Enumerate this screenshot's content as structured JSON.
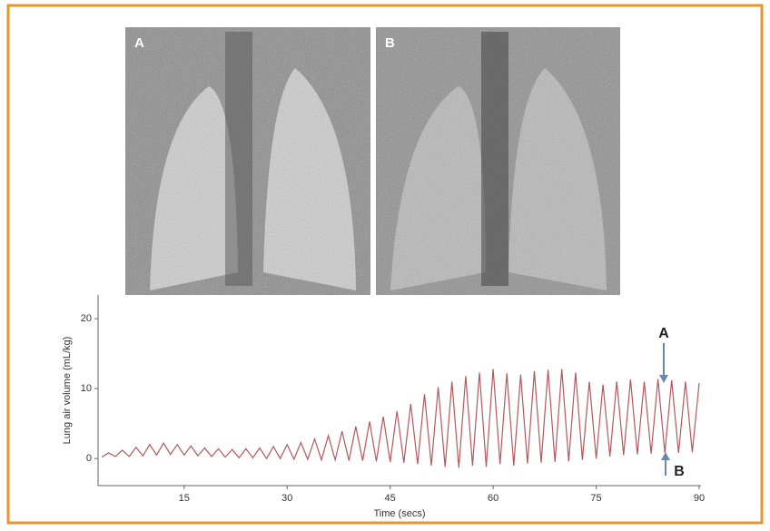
{
  "image_labels": [
    "A",
    "B"
  ],
  "chart_data": {
    "type": "line",
    "y_label": "Lung air volume (mL/kg)",
    "x_label": "Time (secs)",
    "annotations": [
      "A",
      "B"
    ],
    "xlim": [
      3,
      90
    ],
    "xticks": [
      15,
      30,
      45,
      60,
      75,
      90
    ],
    "ylim": [
      -4,
      23
    ],
    "yticks": [
      0,
      10,
      20
    ],
    "x": [
      3,
      4,
      5,
      6,
      7,
      8,
      9,
      10,
      11,
      12,
      13,
      14,
      15,
      16,
      17,
      18,
      19,
      20,
      21,
      22,
      23,
      24,
      25,
      26,
      27,
      28,
      29,
      30,
      31,
      32,
      33,
      34,
      35,
      36,
      37,
      38,
      39,
      40,
      41,
      42,
      43,
      44,
      45,
      46,
      47,
      48,
      49,
      50,
      51,
      52,
      53,
      54,
      55,
      56,
      57,
      58,
      59,
      60,
      61,
      62,
      63,
      64,
      65,
      66,
      67,
      68,
      69,
      70,
      71,
      72,
      73,
      74,
      75,
      76,
      77,
      78,
      79,
      80,
      81,
      82,
      83,
      84,
      85,
      86,
      87,
      88,
      89,
      90
    ],
    "series": [
      {
        "color": "#b5585c",
        "values": [
          0.2,
          0.8,
          0.3,
          1.2,
          0.3,
          1.6,
          0.4,
          2.0,
          0.5,
          2.2,
          0.6,
          2.0,
          0.5,
          1.8,
          0.4,
          1.5,
          0.3,
          1.4,
          0.2,
          1.3,
          0.1,
          1.4,
          0.1,
          1.5,
          0.0,
          1.7,
          0.0,
          2.0,
          -0.1,
          2.3,
          -0.1,
          2.8,
          -0.2,
          3.3,
          -0.2,
          3.9,
          -0.3,
          4.6,
          -0.3,
          5.3,
          -0.4,
          6.0,
          -0.5,
          6.8,
          -0.6,
          7.8,
          -0.8,
          9.2,
          -1.0,
          10.2,
          -1.2,
          11.0,
          -1.3,
          11.8,
          -1.0,
          12.3,
          -1.2,
          12.8,
          -0.8,
          12.2,
          -1.0,
          12.0,
          -0.7,
          12.5,
          -0.6,
          12.7,
          -0.5,
          12.8,
          -0.4,
          12.3,
          -0.2,
          11.0,
          0.0,
          10.6,
          0.3,
          11.0,
          0.5,
          11.3,
          0.6,
          11.0,
          0.7,
          11.4,
          0.8,
          11.2,
          0.8,
          11.0,
          0.9,
          10.8
        ]
      }
    ]
  }
}
